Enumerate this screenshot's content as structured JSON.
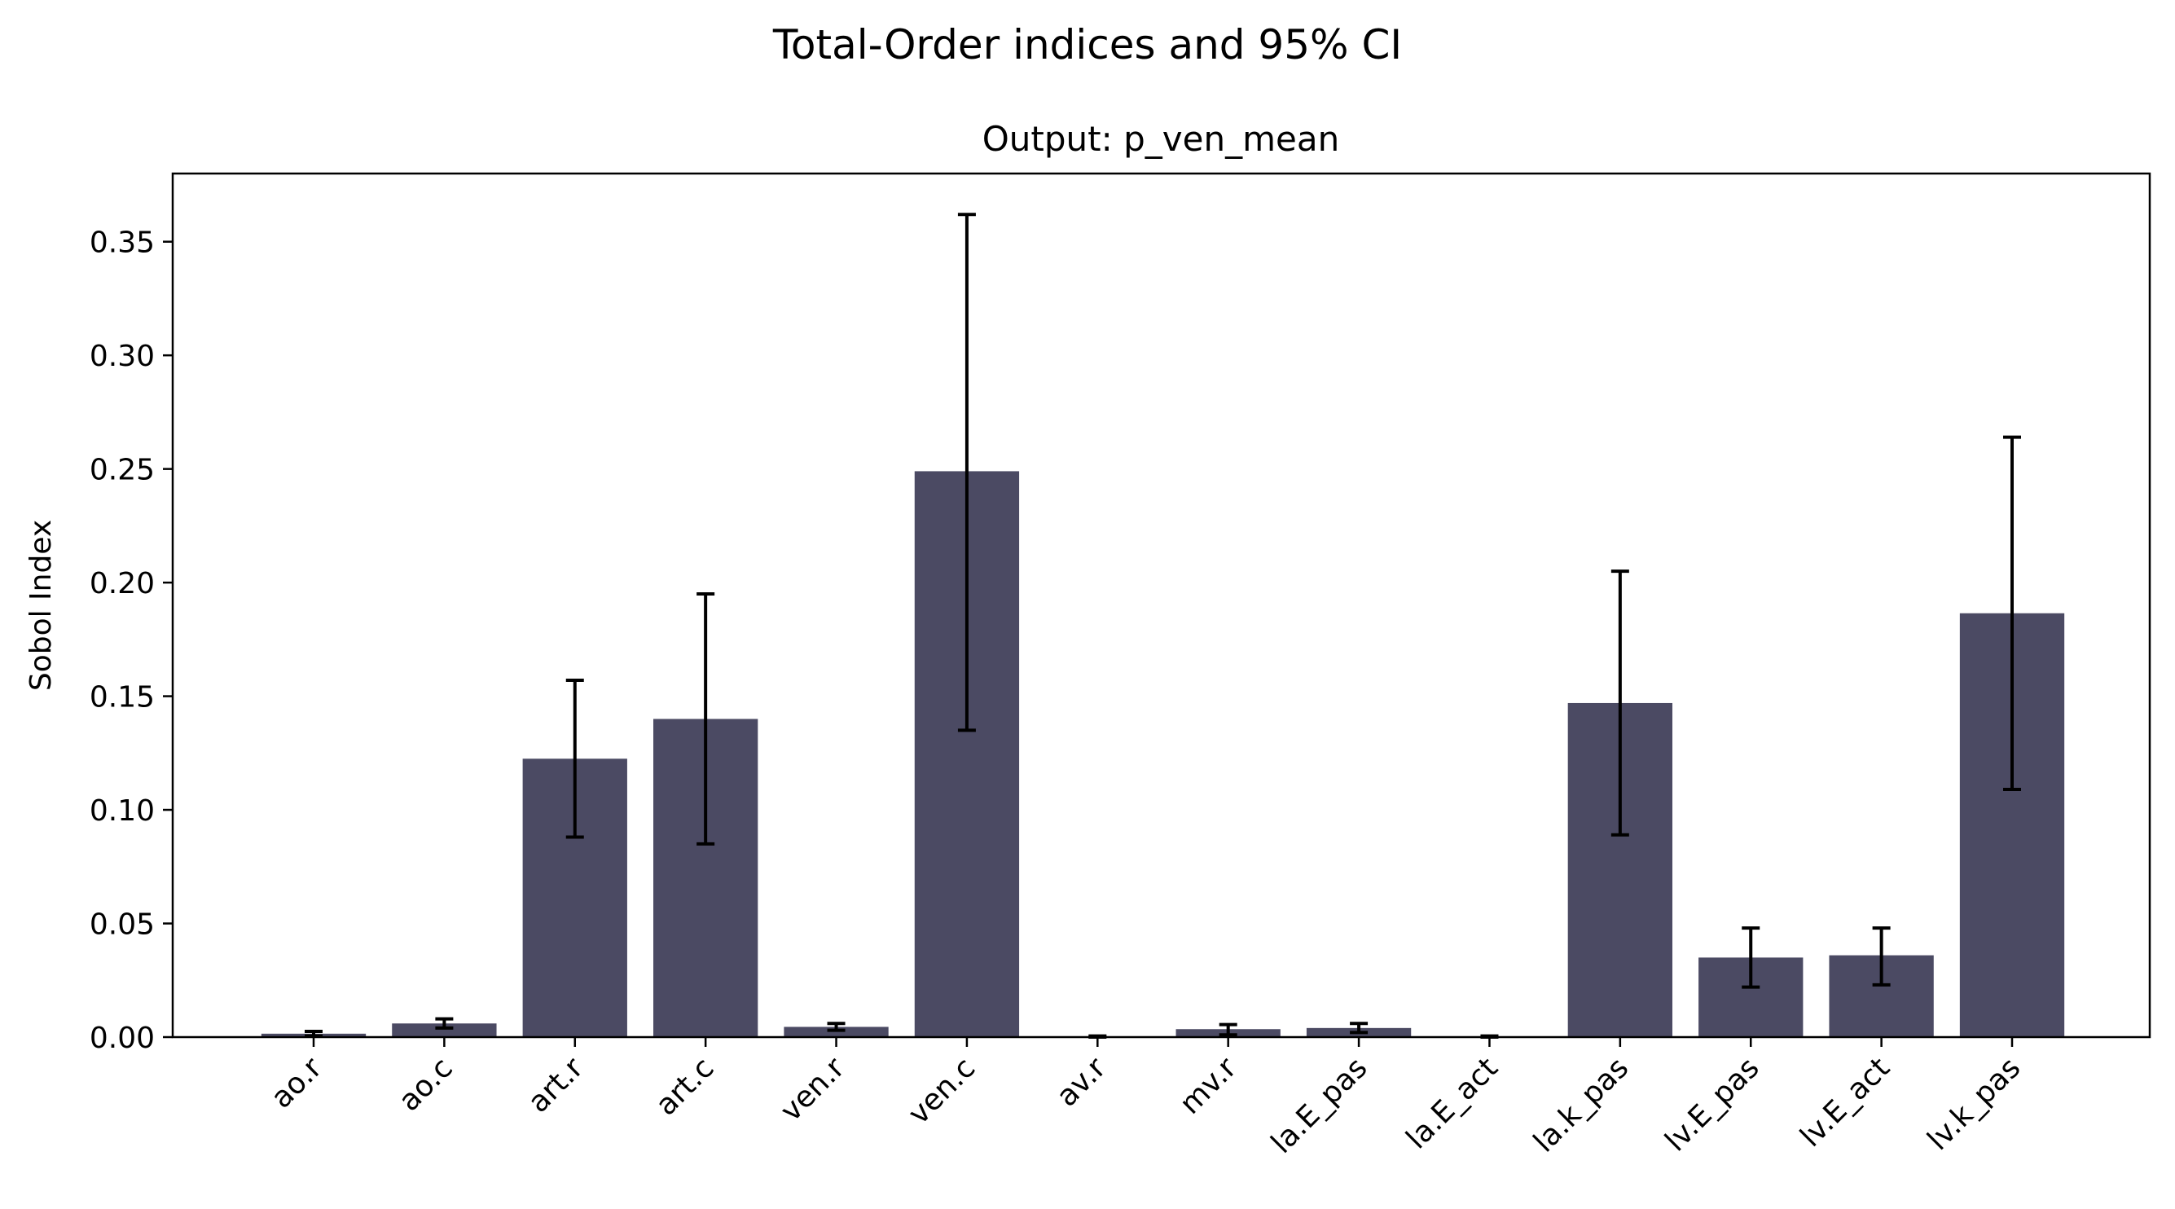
{
  "figure": {
    "suptitle": "Total-Order indices and 95% CI"
  },
  "chart_data": {
    "type": "bar",
    "title": "Output: p_ven_mean",
    "xlabel": "",
    "ylabel": "Sobol Index",
    "ylim": [
      0,
      0.38
    ],
    "yticks": [
      "0.00",
      "0.05",
      "0.10",
      "0.15",
      "0.20",
      "0.25",
      "0.30",
      "0.35"
    ],
    "ytick_values": [
      0,
      0.05,
      0.1,
      0.15,
      0.2,
      0.25,
      0.3,
      0.35
    ],
    "grid": false,
    "legend": "none",
    "bar_color": "#4b4a63",
    "errorbar_color": "#000000",
    "categories": [
      "ao.r",
      "ao.c",
      "art.r",
      "art.c",
      "ven.r",
      "ven.c",
      "av.r",
      "mv.r",
      "la.E_pas",
      "la.E_act",
      "la.k_pas",
      "lv.E_pas",
      "lv.E_act",
      "lv.k_pas"
    ],
    "values": [
      0.0015,
      0.006,
      0.1225,
      0.14,
      0.0045,
      0.249,
      0.0,
      0.0035,
      0.004,
      0.0,
      0.147,
      0.035,
      0.036,
      0.1865
    ],
    "ci_low": [
      0.0005,
      0.004,
      0.088,
      0.085,
      0.003,
      0.135,
      0.0,
      0.001,
      0.002,
      0.0,
      0.089,
      0.022,
      0.023,
      0.109
    ],
    "ci_high": [
      0.0025,
      0.008,
      0.157,
      0.195,
      0.006,
      0.362,
      0.0005,
      0.0055,
      0.006,
      0.0005,
      0.205,
      0.048,
      0.048,
      0.264
    ]
  }
}
